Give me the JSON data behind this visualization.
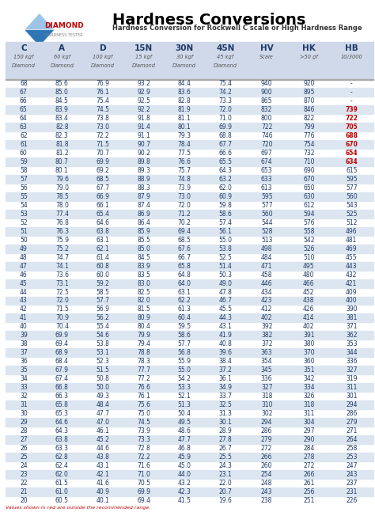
{
  "title": "Hardness Conversions",
  "subtitle": "Hardness Conversion for Rockwell C scale or High Hardness Range",
  "headers": [
    "C",
    "A",
    "D",
    "15N",
    "30N",
    "45N",
    "HV",
    "HK",
    "HB"
  ],
  "subheaders_line1": [
    "150 kgf",
    "60 kgf",
    "100 kgf",
    "15 kgf",
    "30 kgf",
    "45 kgf",
    "Scale",
    ">50 gf",
    "10/3000"
  ],
  "subheaders_line2": [
    "Diamond",
    "Diamond",
    "Diamond",
    "Diamond",
    "Diamond",
    "Diamond",
    "",
    "",
    ""
  ],
  "rows": [
    [
      68,
      85.6,
      76.9,
      93.2,
      84.4,
      75.4,
      940,
      920,
      "-"
    ],
    [
      67,
      85.0,
      76.1,
      92.9,
      83.6,
      74.2,
      900,
      895,
      "-"
    ],
    [
      66,
      84.5,
      75.4,
      92.5,
      82.8,
      73.3,
      865,
      870,
      "-"
    ],
    [
      65,
      83.9,
      74.5,
      92.2,
      81.9,
      72.0,
      832,
      846,
      739
    ],
    [
      64,
      83.4,
      73.8,
      91.8,
      81.1,
      71.0,
      800,
      822,
      722
    ],
    [
      63,
      82.8,
      73.0,
      91.4,
      80.1,
      69.9,
      722,
      799,
      705
    ],
    [
      62,
      82.3,
      72.2,
      91.1,
      79.3,
      68.8,
      746,
      776,
      688
    ],
    [
      61,
      81.8,
      71.5,
      90.7,
      78.4,
      67.7,
      720,
      754,
      670
    ],
    [
      60,
      81.2,
      70.7,
      90.2,
      77.5,
      66.6,
      697,
      732,
      654
    ],
    [
      59,
      80.7,
      69.9,
      89.8,
      76.6,
      65.5,
      674,
      710,
      634
    ],
    [
      58,
      80.1,
      69.2,
      89.3,
      75.7,
      64.3,
      653,
      690,
      615
    ],
    [
      57,
      79.6,
      68.5,
      88.9,
      74.8,
      63.2,
      633,
      670,
      595
    ],
    [
      56,
      79.0,
      67.7,
      88.3,
      73.9,
      62.0,
      613,
      650,
      577
    ],
    [
      55,
      78.5,
      66.9,
      87.9,
      73.0,
      60.9,
      595,
      630,
      560
    ],
    [
      54,
      78.0,
      66.1,
      87.4,
      72.0,
      59.8,
      577,
      612,
      543
    ],
    [
      53,
      77.4,
      65.4,
      86.9,
      71.2,
      58.6,
      560,
      594,
      525
    ],
    [
      52,
      76.8,
      64.6,
      86.4,
      70.2,
      57.4,
      544,
      576,
      512
    ],
    [
      51,
      76.3,
      63.8,
      85.9,
      69.4,
      56.1,
      528,
      558,
      496
    ],
    [
      50,
      75.9,
      63.1,
      85.5,
      68.5,
      55.0,
      513,
      542,
      481
    ],
    [
      49,
      75.2,
      62.1,
      85.0,
      67.6,
      53.8,
      498,
      526,
      469
    ],
    [
      48,
      74.7,
      61.4,
      84.5,
      66.7,
      52.5,
      484,
      510,
      455
    ],
    [
      47,
      74.1,
      60.8,
      83.9,
      65.8,
      51.4,
      471,
      495,
      443
    ],
    [
      46,
      73.6,
      60.0,
      83.5,
      64.8,
      50.3,
      458,
      480,
      432
    ],
    [
      45,
      73.1,
      59.2,
      83.0,
      64.0,
      49.0,
      446,
      466,
      421
    ],
    [
      44,
      72.5,
      58.5,
      82.5,
      63.1,
      47.8,
      434,
      452,
      409
    ],
    [
      43,
      72.0,
      57.7,
      82.0,
      62.2,
      46.7,
      423,
      438,
      400
    ],
    [
      42,
      71.5,
      56.9,
      81.5,
      61.3,
      45.5,
      412,
      426,
      390
    ],
    [
      41,
      70.9,
      56.2,
      80.9,
      60.4,
      44.3,
      402,
      414,
      381
    ],
    [
      40,
      70.4,
      55.4,
      80.4,
      59.5,
      43.1,
      392,
      402,
      371
    ],
    [
      39,
      69.9,
      54.6,
      79.9,
      58.6,
      41.9,
      382,
      391,
      362
    ],
    [
      38,
      69.4,
      53.8,
      79.4,
      57.7,
      40.8,
      372,
      380,
      353
    ],
    [
      37,
      68.9,
      53.1,
      78.8,
      56.8,
      39.6,
      363,
      370,
      344
    ],
    [
      36,
      68.4,
      52.3,
      78.3,
      55.9,
      38.4,
      354,
      360,
      336
    ],
    [
      35,
      67.9,
      51.5,
      77.7,
      55.0,
      37.2,
      345,
      351,
      327
    ],
    [
      34,
      67.4,
      50.8,
      77.2,
      54.2,
      36.1,
      336,
      342,
      319
    ],
    [
      33,
      66.8,
      50.0,
      76.6,
      53.3,
      34.9,
      327,
      334,
      311
    ],
    [
      32,
      66.3,
      49.3,
      76.1,
      52.1,
      33.7,
      318,
      326,
      301
    ],
    [
      31,
      65.8,
      48.4,
      75.6,
      51.3,
      32.5,
      310,
      318,
      294
    ],
    [
      30,
      65.3,
      47.7,
      75.0,
      50.4,
      31.3,
      302,
      311,
      286
    ],
    [
      29,
      64.6,
      47.0,
      74.5,
      49.5,
      30.1,
      294,
      304,
      279
    ],
    [
      28,
      64.3,
      46.1,
      73.9,
      48.6,
      28.9,
      286,
      297,
      271
    ],
    [
      27,
      63.8,
      45.2,
      73.3,
      47.7,
      27.8,
      279,
      290,
      264
    ],
    [
      26,
      63.3,
      44.6,
      72.8,
      46.8,
      26.7,
      272,
      284,
      258
    ],
    [
      25,
      62.8,
      43.8,
      72.2,
      45.9,
      25.5,
      266,
      278,
      253
    ],
    [
      24,
      62.4,
      43.1,
      71.6,
      45.0,
      24.3,
      260,
      272,
      247
    ],
    [
      23,
      62.0,
      42.1,
      71.0,
      44.0,
      23.1,
      254,
      266,
      243
    ],
    [
      22,
      61.5,
      41.6,
      70.5,
      43.2,
      22.0,
      248,
      261,
      237
    ],
    [
      21,
      61.0,
      40.9,
      69.9,
      42.3,
      20.7,
      243,
      256,
      231
    ],
    [
      20,
      60.5,
      40.1,
      69.4,
      41.5,
      19.6,
      238,
      251,
      226
    ]
  ],
  "red_hb_rows": [
    65,
    64,
    63,
    62,
    61,
    60,
    59
  ],
  "alt_rows": [
    67,
    65,
    63,
    61,
    59,
    57,
    55,
    53,
    51,
    49,
    47,
    45,
    43,
    41,
    39,
    37,
    35,
    33,
    31,
    29,
    27,
    25,
    23,
    21
  ],
  "bg_color": "#ffffff",
  "header_bg": "#cfd9ea",
  "alt_row_bg": "#dce6f1",
  "red_color": "#c00000",
  "text_color": "#1f3864",
  "header_text_color": "#1f3864",
  "note": "Values shown in red are outside the recommended range.",
  "figw": 4.74,
  "figh": 6.52,
  "dpi": 100
}
